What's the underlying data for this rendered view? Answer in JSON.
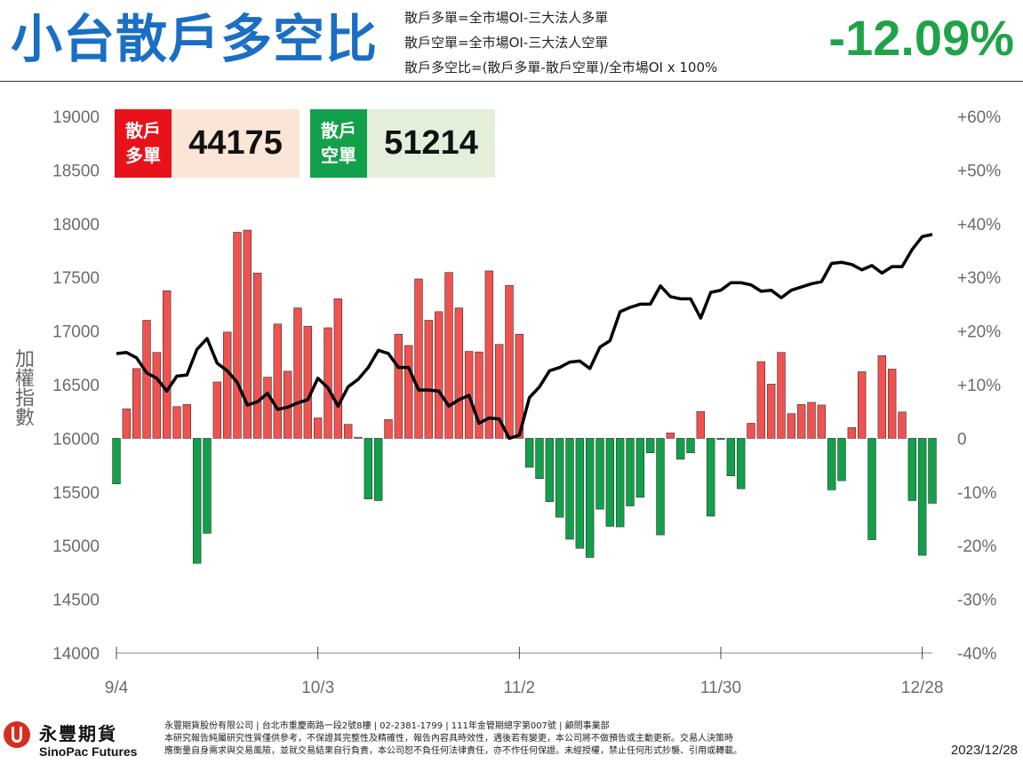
{
  "header": {
    "title": "小台散戶多空比",
    "formulas": [
      "散戶多單=全市場OI-三大法人多單",
      "散戶空單=全市場OI-三大法人空單",
      "散戶多空比=(散戶多單-散戶空單)/全市場OI x 100%"
    ],
    "ratio": "-12.09%"
  },
  "boxes": {
    "long": {
      "label_line1": "散戶",
      "label_line2": "多單",
      "value": "44175",
      "tag_color": "#e8121b",
      "bg_color": "#fbe5d6"
    },
    "short": {
      "label_line1": "散戶",
      "label_line2": "空單",
      "value": "51214",
      "tag_color": "#13a04a",
      "bg_color": "#e2efda"
    }
  },
  "chart_data": {
    "type": "bar+line",
    "ylabel": "加權指數",
    "left_axis": {
      "min": 14000,
      "max": 19000,
      "ticks": [
        "19000",
        "18500",
        "18000",
        "17500",
        "17000",
        "16500",
        "16000",
        "15500",
        "15000",
        "14500",
        "14000"
      ]
    },
    "right_axis": {
      "min": -40,
      "max": 60,
      "ticks": [
        "+60%",
        "+50%",
        "+40%",
        "+30%",
        "+20%",
        "+10%",
        "0",
        "-10%",
        "-20%",
        "-30%",
        "-40%"
      ]
    },
    "x_tick_labels": [
      {
        "label": "9/4",
        "index": 0
      },
      {
        "label": "10/3",
        "index": 20
      },
      {
        "label": "11/2",
        "index": 40
      },
      {
        "label": "11/30",
        "index": 60
      },
      {
        "label": "12/28",
        "index": 80
      }
    ],
    "colors": {
      "positive": "#ef5350",
      "negative": "#13a04a",
      "index_line": "#000000"
    },
    "series": [
      {
        "name": "散戶多空比 (%)",
        "axis": "right",
        "kind": "bar",
        "values": [
          -8.5,
          5.5,
          13,
          22,
          16,
          27.5,
          5.9,
          6.3,
          -23.3,
          -17.7,
          10.5,
          19.8,
          38.4,
          38.8,
          30.8,
          11.4,
          21.3,
          12.5,
          24.3,
          20.9,
          3.8,
          20.6,
          26,
          2.6,
          0.2,
          -11.3,
          -11.6,
          3.5,
          19.4,
          17.3,
          29.7,
          22,
          23.6,
          30.9,
          24.3,
          16.2,
          16.1,
          31.2,
          17.5,
          28.5,
          19.4,
          -5.4,
          -7.5,
          -11.8,
          -14.7,
          -18.8,
          -20.5,
          -22.2,
          -13.2,
          -16.4,
          -16.5,
          -12.6,
          -11,
          -2.7,
          -18,
          1,
          -3.9,
          -2.7,
          5,
          -14.5,
          -0.2,
          -7,
          -9.4,
          2.8,
          14.3,
          10.1,
          16,
          4.6,
          6.3,
          6.7,
          6.2,
          -9.6,
          -7.9,
          2,
          12.4,
          -18.9,
          15.4,
          12.9,
          4.9,
          -11.6,
          -21.8,
          -12.1
        ]
      },
      {
        "name": "加權指數",
        "axis": "left",
        "kind": "line",
        "values": [
          16790,
          16800,
          16750,
          16610,
          16560,
          16440,
          16580,
          16590,
          16830,
          16930,
          16700,
          16630,
          16520,
          16310,
          16340,
          16420,
          16270,
          16290,
          16330,
          16360,
          16560,
          16470,
          16300,
          16480,
          16550,
          16660,
          16820,
          16790,
          16660,
          16660,
          16450,
          16450,
          16440,
          16300,
          16360,
          16400,
          16140,
          16190,
          16180,
          16000,
          16030,
          16380,
          16480,
          16630,
          16660,
          16710,
          16720,
          16650,
          16850,
          16910,
          17180,
          17220,
          17250,
          17250,
          17420,
          17320,
          17300,
          17300,
          17120,
          17360,
          17380,
          17450,
          17450,
          17430,
          17370,
          17380,
          17310,
          17380,
          17410,
          17440,
          17460,
          17630,
          17640,
          17620,
          17570,
          17610,
          17540,
          17600,
          17600,
          17760,
          17880,
          17900
        ]
      }
    ]
  },
  "footer": {
    "brand_zh": "永豐期貨",
    "brand_en": "SinoPac Futures",
    "disclaimer_lines": [
      "永豐期貨股份有限公司 | 台北市重慶南路一段2號8樓 | 02-2381-1799 | 111年金管期總字第007號 | 顧問事業部",
      "本研究報告純屬研究性質僅供參考，不保證其完整性及精確性，報告內容具時效性，遇後若有變更，本公司將不做預告或主動更新。交易人決策時",
      "應衡量自身需求與交易風險，並就交易結果自行負責，本公司恕不負任何法律責任，亦不作任何保證。未經授權，禁止任何形式抄襲、引用或轉載。"
    ],
    "date": "2023/12/28"
  }
}
